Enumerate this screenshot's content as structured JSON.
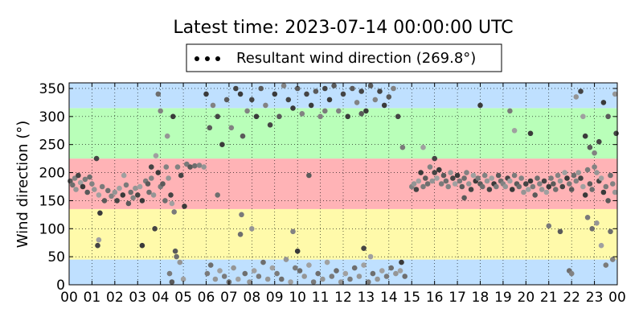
{
  "chart_data": {
    "type": "scatter",
    "title": "Latest time: 2023-07-14 00:00:00 UTC",
    "legend": {
      "label": "Resultant wind direction (269.8°)",
      "placement": "top-center"
    },
    "xlabel": "",
    "ylabel": "Wind direction (°)",
    "xlim": [
      0,
      24
    ],
    "ylim": [
      0,
      360
    ],
    "grid": true,
    "x_ticks": [
      "00",
      "01",
      "02",
      "03",
      "04",
      "05",
      "06",
      "07",
      "08",
      "09",
      "10",
      "11",
      "12",
      "13",
      "14",
      "15",
      "16",
      "17",
      "18",
      "19",
      "20",
      "21",
      "22",
      "23",
      "00"
    ],
    "y_ticks": [
      0,
      50,
      100,
      150,
      200,
      250,
      300,
      350
    ],
    "bands": [
      {
        "from": 0,
        "to": 45,
        "color": "#bfe0ff"
      },
      {
        "from": 45,
        "to": 135,
        "color": "#fffaaa"
      },
      {
        "from": 135,
        "to": 225,
        "color": "#ffb3b6"
      },
      {
        "from": 225,
        "to": 315,
        "color": "#b9ffb9"
      },
      {
        "from": 315,
        "to": 360,
        "color": "#bfe0ff"
      }
    ],
    "points": [
      [
        0.05,
        185
      ],
      [
        0.15,
        178
      ],
      [
        0.25,
        190
      ],
      [
        0.3,
        170
      ],
      [
        0.4,
        195
      ],
      [
        0.5,
        182
      ],
      [
        0.6,
        175
      ],
      [
        0.7,
        188
      ],
      [
        0.8,
        165
      ],
      [
        0.9,
        192
      ],
      [
        1.0,
        180
      ],
      [
        1.1,
        170
      ],
      [
        1.2,
        225
      ],
      [
        1.3,
        160
      ],
      [
        1.35,
        128
      ],
      [
        1.45,
        175
      ],
      [
        1.55,
        150
      ],
      [
        1.7,
        168
      ],
      [
        1.85,
        158
      ],
      [
        2.0,
        165
      ],
      [
        2.1,
        150
      ],
      [
        2.2,
        172
      ],
      [
        2.35,
        160
      ],
      [
        2.5,
        178
      ],
      [
        2.6,
        145
      ],
      [
        2.7,
        165
      ],
      [
        2.8,
        155
      ],
      [
        2.9,
        172
      ],
      [
        3.0,
        160
      ],
      [
        3.1,
        175
      ],
      [
        3.2,
        150
      ],
      [
        3.35,
        185
      ],
      [
        3.45,
        180
      ],
      [
        3.5,
        165
      ],
      [
        3.6,
        190
      ],
      [
        3.7,
        160
      ],
      [
        3.75,
        100
      ],
      [
        3.8,
        230
      ],
      [
        3.9,
        200
      ],
      [
        4.0,
        175
      ],
      [
        4.1,
        180
      ],
      [
        4.2,
        150
      ],
      [
        4.25,
        210
      ],
      [
        4.35,
        190
      ],
      [
        4.45,
        160
      ],
      [
        4.5,
        145
      ],
      [
        4.55,
        300
      ],
      [
        4.6,
        130
      ],
      [
        4.65,
        60
      ],
      [
        4.7,
        50
      ],
      [
        4.75,
        210
      ],
      [
        4.85,
        40
      ],
      [
        4.9,
        195
      ],
      [
        5.0,
        10
      ],
      [
        5.05,
        140
      ],
      [
        5.15,
        215
      ],
      [
        5.3,
        210
      ],
      [
        5.5,
        212
      ],
      [
        5.7,
        213
      ],
      [
        5.9,
        210
      ],
      [
        1.25,
        70
      ],
      [
        1.3,
        80
      ],
      [
        3.2,
        70
      ],
      [
        4.4,
        20
      ],
      [
        4.5,
        5
      ],
      [
        3.9,
        340
      ],
      [
        4.0,
        310
      ],
      [
        4.3,
        265
      ],
      [
        3.6,
        210
      ],
      [
        2.4,
        195
      ],
      [
        6.0,
        340
      ],
      [
        6.05,
        20
      ],
      [
        6.15,
        280
      ],
      [
        6.2,
        35
      ],
      [
        6.3,
        320
      ],
      [
        6.4,
        10
      ],
      [
        6.5,
        300
      ],
      [
        6.6,
        25
      ],
      [
        6.7,
        250
      ],
      [
        6.8,
        15
      ],
      [
        6.9,
        330
      ],
      [
        7.0,
        5
      ],
      [
        7.1,
        280
      ],
      [
        7.2,
        30
      ],
      [
        7.3,
        350
      ],
      [
        7.4,
        10
      ],
      [
        7.5,
        340
      ],
      [
        7.55,
        125
      ],
      [
        7.6,
        265
      ],
      [
        7.7,
        20
      ],
      [
        7.8,
        310
      ],
      [
        7.9,
        5
      ],
      [
        8.0,
        330
      ],
      [
        8.1,
        25
      ],
      [
        8.2,
        300
      ],
      [
        8.3,
        15
      ],
      [
        8.4,
        350
      ],
      [
        8.5,
        40
      ],
      [
        8.6,
        320
      ],
      [
        8.7,
        10
      ],
      [
        8.8,
        285
      ],
      [
        8.9,
        30
      ],
      [
        9.0,
        340
      ],
      [
        9.1,
        20
      ],
      [
        9.2,
        300
      ],
      [
        9.3,
        10
      ],
      [
        9.4,
        355
      ],
      [
        9.5,
        45
      ],
      [
        9.6,
        330
      ],
      [
        9.7,
        5
      ],
      [
        9.8,
        315
      ],
      [
        9.9,
        30
      ],
      [
        10.0,
        350
      ],
      [
        10.1,
        25
      ],
      [
        10.2,
        305
      ],
      [
        10.3,
        15
      ],
      [
        10.4,
        340
      ],
      [
        10.5,
        35
      ],
      [
        10.6,
        320
      ],
      [
        10.7,
        5
      ],
      [
        10.8,
        345
      ],
      [
        10.9,
        20
      ],
      [
        11.0,
        300
      ],
      [
        11.1,
        10
      ],
      [
        11.2,
        350
      ],
      [
        11.3,
        40
      ],
      [
        11.4,
        330
      ],
      [
        11.5,
        15
      ],
      [
        11.6,
        355
      ],
      [
        11.7,
        25
      ],
      [
        11.8,
        310
      ],
      [
        11.9,
        5
      ],
      [
        12.0,
        340
      ],
      [
        12.1,
        20
      ],
      [
        12.2,
        300
      ],
      [
        12.3,
        10
      ],
      [
        12.4,
        350
      ],
      [
        12.5,
        30
      ],
      [
        12.6,
        325
      ],
      [
        12.7,
        15
      ],
      [
        12.8,
        345
      ],
      [
        12.9,
        35
      ],
      [
        13.0,
        310
      ],
      [
        13.1,
        5
      ],
      [
        13.2,
        355
      ],
      [
        13.3,
        20
      ],
      [
        13.4,
        330
      ],
      [
        13.5,
        10
      ],
      [
        13.6,
        345
      ],
      [
        13.7,
        25
      ],
      [
        13.8,
        320
      ],
      [
        13.9,
        15
      ],
      [
        14.0,
        335
      ],
      [
        14.1,
        30
      ],
      [
        14.2,
        350
      ],
      [
        14.3,
        20
      ],
      [
        14.4,
        300
      ],
      [
        14.5,
        25
      ],
      [
        14.55,
        40
      ],
      [
        14.6,
        245
      ],
      [
        10.5,
        195
      ],
      [
        7.5,
        90
      ],
      [
        9.8,
        95
      ],
      [
        8.0,
        100
      ],
      [
        12.9,
        65
      ],
      [
        13.2,
        50
      ],
      [
        10.0,
        60
      ],
      [
        11.2,
        310
      ],
      [
        12.8,
        305
      ],
      [
        6.5,
        160
      ],
      [
        15.0,
        175
      ],
      [
        15.1,
        180
      ],
      [
        15.2,
        170
      ],
      [
        15.3,
        185
      ],
      [
        15.4,
        200
      ],
      [
        15.5,
        175
      ],
      [
        15.6,
        190
      ],
      [
        15.7,
        180
      ],
      [
        15.8,
        210
      ],
      [
        15.9,
        185
      ],
      [
        16.0,
        200
      ],
      [
        16.1,
        190
      ],
      [
        16.2,
        205
      ],
      [
        16.3,
        180
      ],
      [
        16.4,
        195
      ],
      [
        16.5,
        185
      ],
      [
        16.6,
        175
      ],
      [
        16.7,
        200
      ],
      [
        16.8,
        190
      ],
      [
        16.9,
        180
      ],
      [
        17.0,
        195
      ],
      [
        17.1,
        185
      ],
      [
        17.2,
        175
      ],
      [
        17.3,
        190
      ],
      [
        17.4,
        200
      ],
      [
        17.5,
        180
      ],
      [
        17.6,
        170
      ],
      [
        17.7,
        195
      ],
      [
        17.8,
        185
      ],
      [
        17.9,
        190
      ],
      [
        18.0,
        180
      ],
      [
        18.1,
        175
      ],
      [
        18.2,
        195
      ],
      [
        18.3,
        185
      ],
      [
        18.4,
        170
      ],
      [
        18.5,
        190
      ],
      [
        18.6,
        180
      ],
      [
        18.7,
        175
      ],
      [
        18.8,
        195
      ],
      [
        18.9,
        185
      ],
      [
        19.0,
        180
      ],
      [
        19.1,
        175
      ],
      [
        19.2,
        190
      ],
      [
        19.3,
        185
      ],
      [
        19.4,
        170
      ],
      [
        19.5,
        195
      ],
      [
        19.6,
        180
      ],
      [
        19.7,
        175
      ],
      [
        19.8,
        190
      ],
      [
        19.9,
        165
      ],
      [
        20.0,
        180
      ],
      [
        20.1,
        170
      ],
      [
        20.2,
        185
      ],
      [
        20.3,
        175
      ],
      [
        20.4,
        160
      ],
      [
        20.5,
        190
      ],
      [
        20.6,
        180
      ],
      [
        20.7,
        170
      ],
      [
        20.8,
        185
      ],
      [
        20.9,
        165
      ],
      [
        21.0,
        175
      ],
      [
        21.1,
        190
      ],
      [
        21.2,
        180
      ],
      [
        21.3,
        170
      ],
      [
        21.4,
        195
      ],
      [
        21.5,
        185
      ],
      [
        21.6,
        175
      ],
      [
        21.7,
        200
      ],
      [
        21.8,
        190
      ],
      [
        21.9,
        180
      ],
      [
        22.0,
        170
      ],
      [
        22.1,
        195
      ],
      [
        22.2,
        185
      ],
      [
        22.3,
        200
      ],
      [
        22.4,
        190
      ],
      [
        22.5,
        175
      ],
      [
        22.6,
        160
      ],
      [
        22.7,
        205
      ],
      [
        22.8,
        180
      ],
      [
        22.9,
        170
      ],
      [
        23.0,
        210
      ],
      [
        23.1,
        200
      ],
      [
        23.2,
        185
      ],
      [
        23.3,
        190
      ],
      [
        23.4,
        165
      ],
      [
        23.5,
        175
      ],
      [
        23.6,
        150
      ],
      [
        23.7,
        195
      ],
      [
        23.8,
        180
      ],
      [
        23.9,
        165
      ],
      [
        16.0,
        225
      ],
      [
        19.5,
        275
      ],
      [
        20.2,
        270
      ],
      [
        21.0,
        105
      ],
      [
        21.5,
        95
      ],
      [
        21.9,
        25
      ],
      [
        22.0,
        20
      ],
      [
        22.2,
        335
      ],
      [
        22.4,
        345
      ],
      [
        22.5,
        300
      ],
      [
        22.6,
        265
      ],
      [
        22.7,
        120
      ],
      [
        22.8,
        245
      ],
      [
        22.9,
        100
      ],
      [
        23.0,
        235
      ],
      [
        23.1,
        110
      ],
      [
        23.2,
        255
      ],
      [
        23.3,
        70
      ],
      [
        23.4,
        325
      ],
      [
        23.5,
        35
      ],
      [
        23.6,
        300
      ],
      [
        23.7,
        95
      ],
      [
        23.8,
        45
      ],
      [
        23.9,
        340
      ],
      [
        23.95,
        270
      ],
      [
        15.5,
        245
      ],
      [
        18.0,
        320
      ],
      [
        19.3,
        310
      ],
      [
        17.3,
        155
      ],
      [
        14.7,
        15
      ]
    ]
  }
}
